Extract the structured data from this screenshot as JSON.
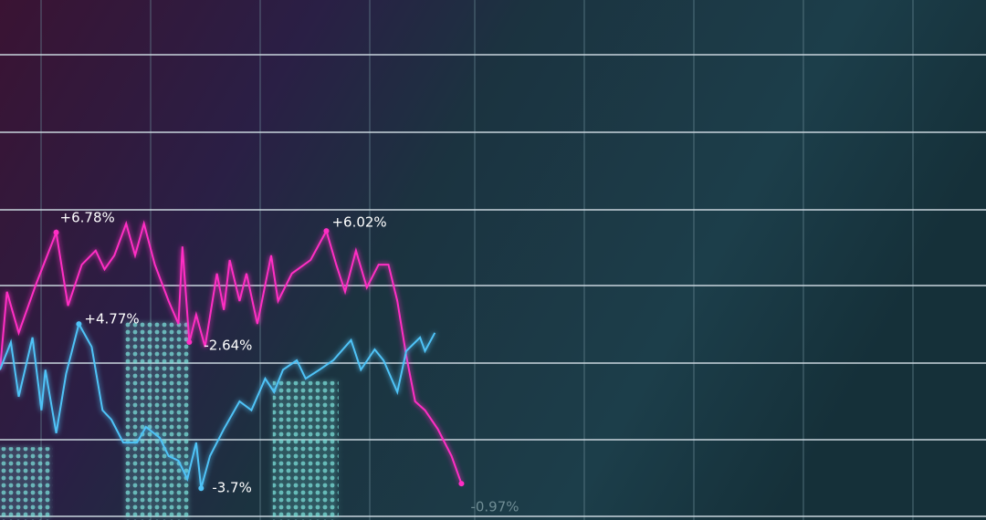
{
  "chart_data": [
    {
      "type": "bar",
      "x": [
        2,
        15.8,
        31
      ],
      "values": [
        14,
        38.2,
        26.7
      ],
      "color": "#5fd6d0",
      "xlim": [
        0,
        100
      ],
      "ylim": [
        0,
        100
      ]
    },
    {
      "type": "line",
      "xlim": [
        0,
        100
      ],
      "ylim": [
        0,
        100
      ],
      "grid": true,
      "series": [
        {
          "color": "#ff2ec4",
          "x": [
            0,
            0.7,
            1.9,
            3.7,
            5.7,
            6.9,
            8.3,
            9.7,
            10.6,
            11.6,
            12.8,
            13.7,
            14.6,
            15.7,
            17.1,
            18.1,
            18.5,
            19.2,
            19.9,
            20.8,
            22.0,
            22.7,
            23.3,
            24.3,
            25.0,
            26.1,
            27.5,
            28.2,
            29.6,
            31.5,
            33.1,
            34.1,
            35.0,
            36.1,
            37.2,
            38.4,
            39.4,
            40.3,
            41.2,
            42.1,
            43.1,
            44.4,
            45.8,
            46.8
          ],
          "values": [
            28.9,
            43.9,
            36.0,
            45.6,
            55.3,
            41.2,
            49.1,
            51.8,
            48.2,
            50.9,
            57.0,
            50.9,
            57.0,
            49.1,
            42.1,
            37.7,
            52.6,
            34.2,
            39.5,
            33.3,
            47.4,
            40.4,
            50.0,
            42.1,
            47.4,
            37.7,
            50.9,
            42.1,
            47.4,
            50.0,
            55.6,
            49.1,
            43.9,
            51.8,
            44.7,
            49.1,
            49.1,
            42.1,
            31.6,
            22.8,
            21.1,
            17.5,
            12.3,
            7.0
          ]
        },
        {
          "color": "#4fc3f7",
          "x": [
            0,
            1.1,
            1.9,
            3.3,
            4.2,
            4.6,
            5.7,
            6.7,
            8.0,
            9.3,
            10.4,
            11.3,
            12.5,
            13.9,
            14.8,
            16.2,
            17.1,
            18.1,
            19.0,
            19.9,
            20.4,
            21.3,
            22.7,
            24.3,
            25.5,
            26.9,
            27.8,
            28.7,
            30.1,
            31.0,
            32.4,
            33.8,
            35.6,
            36.6,
            38.0,
            38.9,
            40.3,
            41.2,
            42.6,
            43.1,
            44.1
          ],
          "values": [
            28.9,
            34.2,
            23.7,
            35.1,
            21.1,
            28.9,
            16.7,
            28.1,
            37.7,
            33.3,
            21.1,
            19.3,
            14.9,
            14.9,
            17.9,
            15.8,
            12.3,
            11.4,
            7.9,
            14.9,
            6.1,
            12.3,
            17.5,
            22.8,
            21.1,
            27.2,
            24.6,
            28.9,
            30.7,
            27.2,
            28.9,
            30.7,
            34.6,
            28.9,
            32.8,
            30.7,
            24.6,
            32.5,
            35.1,
            32.5,
            36.0
          ]
        }
      ],
      "annotations": [
        "+6.78%",
        "+4.77%",
        "-2.64%",
        "+6.02%",
        "-3.7%",
        "-0.97%"
      ]
    }
  ]
}
